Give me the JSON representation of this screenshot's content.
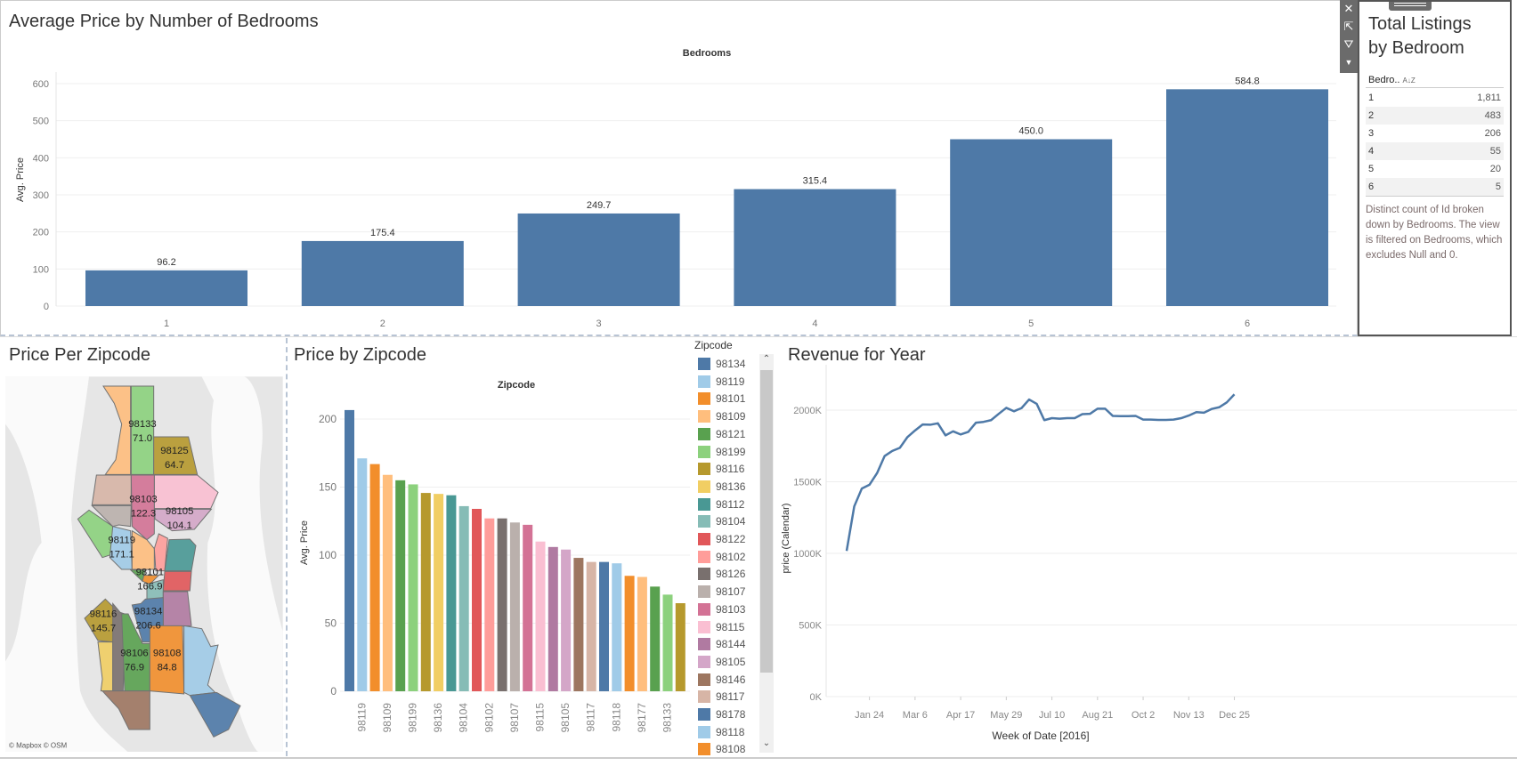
{
  "avg_price_chart": {
    "title": "Average Price by Number of Bedrooms",
    "header": "Bedrooms",
    "ylabel": "Avg. Price"
  },
  "total_listings": {
    "title_line1": "Total Listings",
    "title_line2": "by Bedroom",
    "col_header": "Bedro..",
    "sort_icon": "A-Z sort",
    "rows": [
      {
        "bedrooms": "1",
        "count": "1,811"
      },
      {
        "bedrooms": "2",
        "count": "483"
      },
      {
        "bedrooms": "3",
        "count": "206"
      },
      {
        "bedrooms": "4",
        "count": "55"
      },
      {
        "bedrooms": "5",
        "count": "20"
      },
      {
        "bedrooms": "6",
        "count": "5"
      }
    ],
    "caption": "Distinct count of Id broken down by Bedrooms. The view is filtered on Bedrooms, which excludes Null and 0."
  },
  "map": {
    "title": "Price Per Zipcode",
    "attribution": "© Mapbox © OSM",
    "labels": [
      {
        "zip": "98133",
        "value": "71.0"
      },
      {
        "zip": "98125",
        "value": "64.7"
      },
      {
        "zip": "98103",
        "value": "122.3"
      },
      {
        "zip": "98105",
        "value": "104.1"
      },
      {
        "zip": "98119",
        "value": "171.1"
      },
      {
        "zip": "98101",
        "value": "166.9"
      },
      {
        "zip": "98116",
        "value": "145.7"
      },
      {
        "zip": "98134",
        "value": "206.6"
      },
      {
        "zip": "98106",
        "value": "76.9"
      },
      {
        "zip": "98108",
        "value": "84.8"
      }
    ]
  },
  "zip_chart": {
    "title": "Price by Zipcode",
    "header": "Zipcode",
    "ylabel": "Avg. Price"
  },
  "legend": {
    "title": "Zipcode",
    "items": [
      {
        "zip": "98134",
        "color": "#4e79a7"
      },
      {
        "zip": "98119",
        "color": "#a0cbe8"
      },
      {
        "zip": "98101",
        "color": "#f28e2b"
      },
      {
        "zip": "98109",
        "color": "#ffbe7d"
      },
      {
        "zip": "98121",
        "color": "#59a14f"
      },
      {
        "zip": "98199",
        "color": "#8cd17d"
      },
      {
        "zip": "98116",
        "color": "#b6992d"
      },
      {
        "zip": "98136",
        "color": "#f1ce63"
      },
      {
        "zip": "98112",
        "color": "#499894"
      },
      {
        "zip": "98104",
        "color": "#86bcb6"
      },
      {
        "zip": "98122",
        "color": "#e15759"
      },
      {
        "zip": "98102",
        "color": "#ff9d9a"
      },
      {
        "zip": "98126",
        "color": "#79706e"
      },
      {
        "zip": "98107",
        "color": "#bab0ac"
      },
      {
        "zip": "98103",
        "color": "#d37295"
      },
      {
        "zip": "98115",
        "color": "#fabfd2"
      },
      {
        "zip": "98144",
        "color": "#b07aa1"
      },
      {
        "zip": "98105",
        "color": "#d4a6c8"
      },
      {
        "zip": "98146",
        "color": "#9d7660"
      },
      {
        "zip": "98117",
        "color": "#d7b5a6"
      },
      {
        "zip": "98178",
        "color": "#4e79a7"
      },
      {
        "zip": "98118",
        "color": "#a0cbe8"
      },
      {
        "zip": "98108",
        "color": "#f28e2b"
      }
    ]
  },
  "revenue_chart": {
    "title": "Revenue for Year"
  },
  "chart_data": [
    {
      "type": "bar",
      "title": "Average Price by Number of Bedrooms",
      "xlabel": "Bedrooms",
      "ylabel": "Avg. Price",
      "categories": [
        "1",
        "2",
        "3",
        "4",
        "5",
        "6"
      ],
      "values": [
        96.2,
        175.4,
        249.7,
        315.4,
        450.0,
        584.8
      ],
      "labels": [
        "96.2",
        "175.4",
        "249.7",
        "315.4",
        "450.0",
        "584.8"
      ],
      "yticks": [
        "0",
        "100",
        "200",
        "300",
        "400",
        "500",
        "600"
      ],
      "ylim": [
        0,
        600
      ],
      "color": "#4e79a7"
    },
    {
      "type": "bar",
      "title": "Price by Zipcode",
      "xlabel": "Zipcode",
      "ylabel": "Avg. Price",
      "ylim": [
        0,
        220
      ],
      "yticks": [
        "0",
        "50",
        "100",
        "150",
        "200"
      ],
      "categories": [
        "98134",
        "98119",
        "98101",
        "98109",
        "98121",
        "98199",
        "98116",
        "98136",
        "98112",
        "98104",
        "98122",
        "98102",
        "98126",
        "98107",
        "98103",
        "98115",
        "98144",
        "98105",
        "98146",
        "98117",
        "98178",
        "98118",
        "98108",
        "98177",
        "98106",
        "98133",
        "98125"
      ],
      "values": [
        206.6,
        171.1,
        166.9,
        159,
        155,
        152,
        145.7,
        145,
        144,
        136,
        134,
        127,
        127,
        124,
        122.3,
        110,
        106,
        104.1,
        98,
        95,
        95,
        94,
        84.8,
        84,
        76.9,
        71.0,
        64.7
      ],
      "colors": [
        "#4e79a7",
        "#a0cbe8",
        "#f28e2b",
        "#ffbe7d",
        "#59a14f",
        "#8cd17d",
        "#b6992d",
        "#f1ce63",
        "#499894",
        "#86bcb6",
        "#e15759",
        "#ff9d9a",
        "#79706e",
        "#bab0ac",
        "#d37295",
        "#fabfd2",
        "#b07aa1",
        "#d4a6c8",
        "#9d7660",
        "#d7b5a6",
        "#4e79a7",
        "#a0cbe8",
        "#f28e2b",
        "#ffbe7d",
        "#59a14f",
        "#8cd17d",
        "#b6992d"
      ]
    },
    {
      "type": "line",
      "title": "Revenue for Year",
      "xlabel": "Week of Date [2016]",
      "ylabel": "price (Calendar)",
      "yticks": [
        "0K",
        "500K",
        "1000K",
        "1500K",
        "2000K"
      ],
      "ylim": [
        0,
        2200
      ],
      "xticks": [
        {
          "index": 3,
          "label": "Jan 24"
        },
        {
          "index": 9,
          "label": "Mar 6"
        },
        {
          "index": 15,
          "label": "Apr 17"
        },
        {
          "index": 21,
          "label": "May 29"
        },
        {
          "index": 27,
          "label": "Jul 10"
        },
        {
          "index": 33,
          "label": "Aug 21"
        },
        {
          "index": 39,
          "label": "Oct 2"
        },
        {
          "index": 45,
          "label": "Nov 13"
        },
        {
          "index": 51,
          "label": "Dec 25"
        }
      ],
      "values_k": [
        1017,
        1328,
        1453,
        1479,
        1560,
        1680,
        1715,
        1737,
        1812,
        1858,
        1900,
        1898,
        1908,
        1824,
        1852,
        1830,
        1848,
        1912,
        1918,
        1930,
        1974,
        2016,
        1992,
        2014,
        2074,
        2044,
        1930,
        1944,
        1940,
        1944,
        1944,
        1972,
        1974,
        2010,
        2010,
        1960,
        1958,
        1958,
        1960,
        1934,
        1934,
        1932,
        1932,
        1934,
        1944,
        1962,
        1986,
        1982,
        2008,
        2020,
        2054,
        2110
      ],
      "color": "#4e79a7"
    }
  ]
}
